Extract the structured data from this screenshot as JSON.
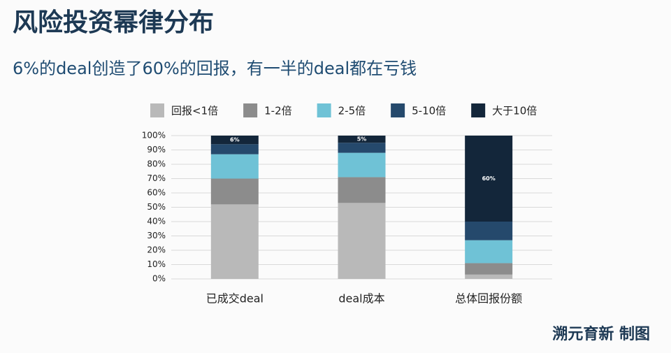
{
  "chart_data": {
    "type": "stacked_bar",
    "title": "风险投资幂律分布",
    "subtitle": "6%的deal创造了60%的回报，有一半的deal都在亏钱",
    "credit": "溯元育新 制图",
    "categories": [
      "已成交deal",
      "deal成本",
      "总体回报份额"
    ],
    "series": [
      {
        "name": "回报<1倍",
        "color": "#b9b9b9",
        "values": [
          52,
          53,
          3
        ]
      },
      {
        "name": "1-2倍",
        "color": "#8c8c8c",
        "values": [
          18,
          18,
          8
        ]
      },
      {
        "name": "2-5倍",
        "color": "#6fc2d6",
        "values": [
          17,
          17,
          16
        ]
      },
      {
        "name": "5-10倍",
        "color": "#25496c",
        "values": [
          7,
          7,
          13
        ]
      },
      {
        "name": "大于10倍",
        "color": "#13263a",
        "values": [
          6,
          5,
          60
        ],
        "value_labels": [
          "6%",
          "5%",
          "60%"
        ]
      }
    ],
    "ylim": [
      0,
      100
    ],
    "yticks": [
      {
        "value": 0,
        "label": "0%"
      },
      {
        "value": 10,
        "label": "10%"
      },
      {
        "value": 20,
        "label": "20%"
      },
      {
        "value": 30,
        "label": "30%"
      },
      {
        "value": 40,
        "label": "40%"
      },
      {
        "value": 50,
        "label": "50%"
      },
      {
        "value": 60,
        "label": "60%"
      },
      {
        "value": 70,
        "label": "70%"
      },
      {
        "value": 80,
        "label": "80%"
      },
      {
        "value": 90,
        "label": "90%"
      },
      {
        "value": 100,
        "label": "100%"
      }
    ],
    "grid": true
  }
}
